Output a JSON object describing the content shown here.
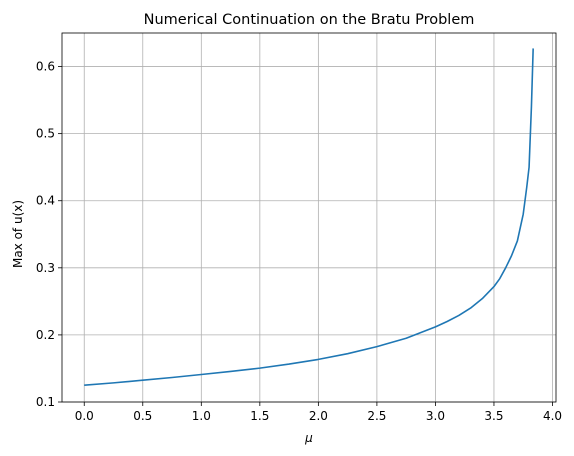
{
  "chart_data": {
    "type": "line",
    "title": "Numerical Continuation on the Bratu Problem",
    "xlabel": "μ",
    "ylabel": "Max of u(x)",
    "xlim": [
      -0.19,
      4.03
    ],
    "ylim": [
      0.1,
      0.65
    ],
    "xticks": [
      0.0,
      0.5,
      1.0,
      1.5,
      2.0,
      2.5,
      3.0,
      3.5,
      4.0
    ],
    "xtick_labels": [
      "0.0",
      "0.5",
      "1.0",
      "1.5",
      "2.0",
      "2.5",
      "3.0",
      "3.5",
      "4.0"
    ],
    "yticks": [
      0.1,
      0.2,
      0.3,
      0.4,
      0.5,
      0.6
    ],
    "ytick_labels": [
      "0.1",
      "0.2",
      "0.3",
      "0.4",
      "0.5",
      "0.6"
    ],
    "grid": true,
    "line_color": "#1f77b4",
    "series": [
      {
        "x": [
          0.0,
          0.25,
          0.5,
          0.75,
          1.0,
          1.25,
          1.5,
          1.75,
          2.0,
          2.25,
          2.5,
          2.75,
          3.0,
          3.1,
          3.2,
          3.3,
          3.4,
          3.5,
          3.55,
          3.6,
          3.65,
          3.7,
          3.75,
          3.78,
          3.8,
          3.82,
          3.835
        ],
        "y": [
          0.125,
          0.1285,
          0.1325,
          0.1365,
          0.141,
          0.1455,
          0.1505,
          0.1565,
          0.1635,
          0.172,
          0.1825,
          0.195,
          0.212,
          0.22,
          0.229,
          0.24,
          0.254,
          0.272,
          0.284,
          0.3,
          0.318,
          0.34,
          0.38,
          0.42,
          0.45,
          0.54,
          0.627
        ]
      }
    ]
  }
}
